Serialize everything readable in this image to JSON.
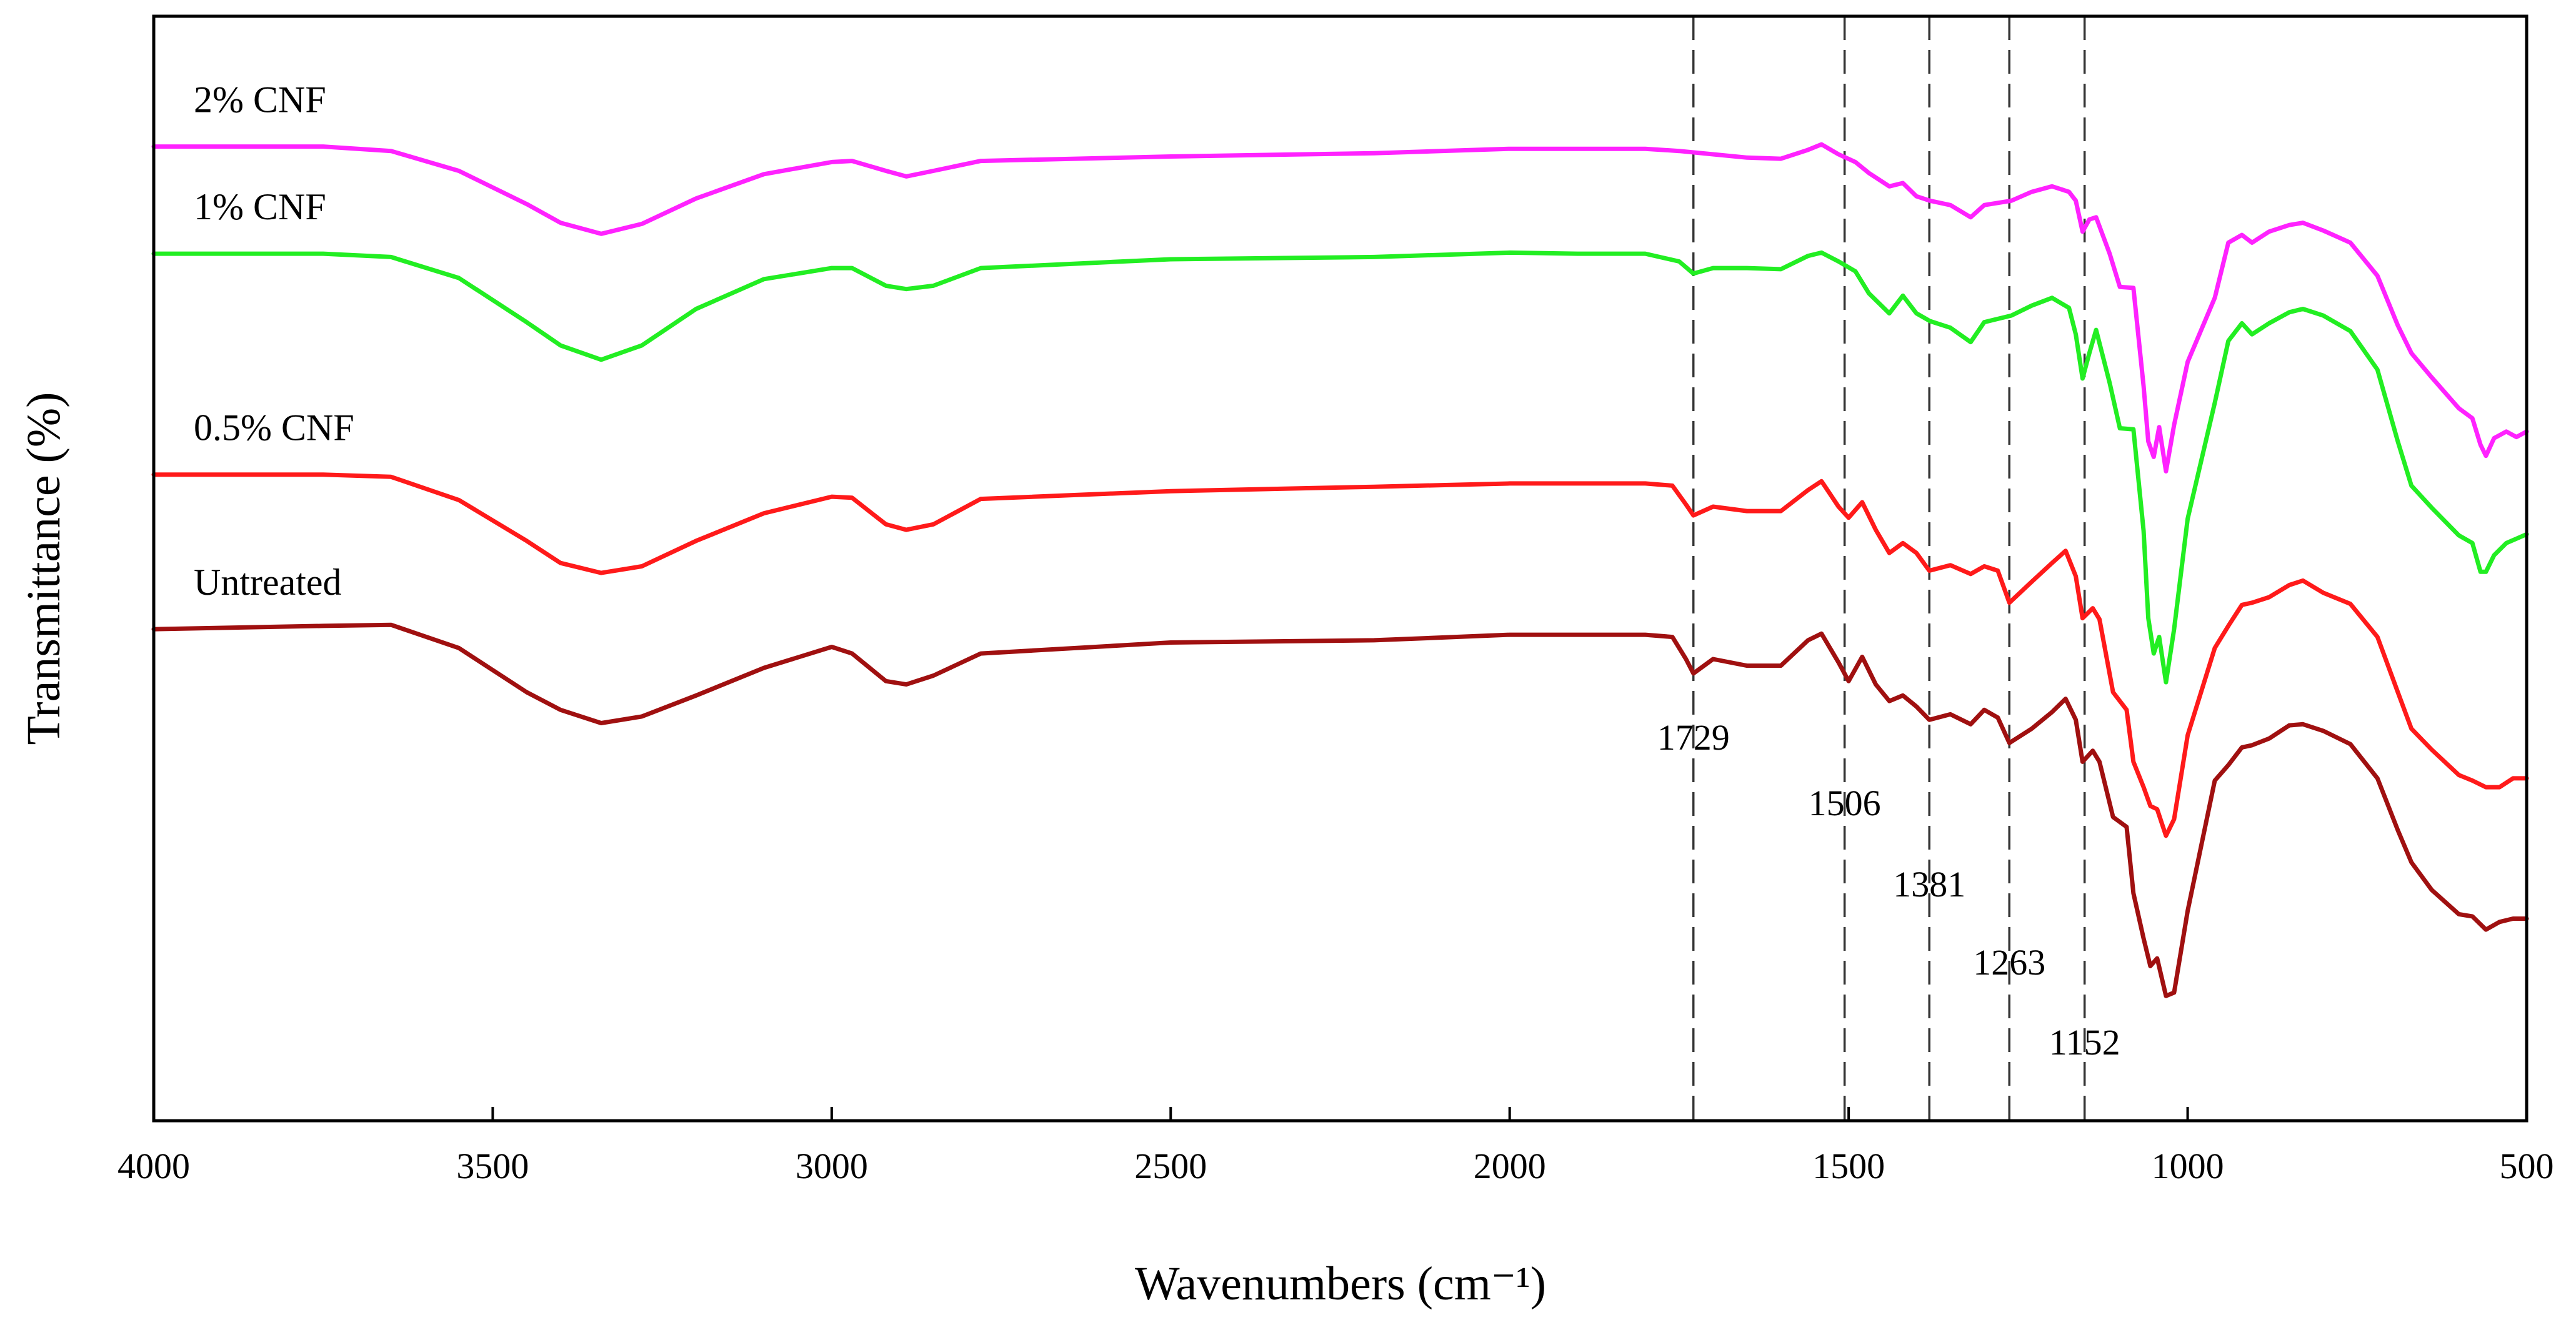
{
  "chart_data": {
    "type": "line",
    "title": "",
    "xlabel": "Wavenumbers (cm⁻¹)",
    "ylabel": "Transmittance (%)",
    "xlim": [
      4000,
      500
    ],
    "x_reversed": true,
    "ylim": [
      0,
      100
    ],
    "y_ticks_shown": false,
    "grid": false,
    "x_ticks": [
      "4000",
      "3500",
      "3000",
      "2500",
      "2000",
      "1500",
      "1000",
      "500"
    ],
    "reference_lines": [
      {
        "x": 1729,
        "label": "1729",
        "style": "dashed"
      },
      {
        "x": 1506,
        "label": "1506",
        "style": "dashed"
      },
      {
        "x": 1381,
        "label": "1381",
        "style": "dashed"
      },
      {
        "x": 1263,
        "label": "1263",
        "style": "dashed"
      },
      {
        "x": 1152,
        "label": "1152",
        "style": "dashed"
      }
    ],
    "series": [
      {
        "name": "2% CNF",
        "color": "#ff22ff",
        "points": [
          [
            4000,
            88.2
          ],
          [
            3750,
            88.2
          ],
          [
            3650,
            87.8
          ],
          [
            3550,
            86
          ],
          [
            3450,
            83
          ],
          [
            3400,
            81.3
          ],
          [
            3340,
            80.3
          ],
          [
            3280,
            81.2
          ],
          [
            3200,
            83.5
          ],
          [
            3100,
            85.7
          ],
          [
            3000,
            86.8
          ],
          [
            2970,
            86.9
          ],
          [
            2920,
            86
          ],
          [
            2890,
            85.5
          ],
          [
            2850,
            86
          ],
          [
            2780,
            86.9
          ],
          [
            2500,
            87.3
          ],
          [
            2200,
            87.6
          ],
          [
            2000,
            88
          ],
          [
            1900,
            88
          ],
          [
            1800,
            88
          ],
          [
            1750,
            87.8
          ],
          [
            1700,
            87.5
          ],
          [
            1650,
            87.2
          ],
          [
            1600,
            87.1
          ],
          [
            1560,
            87.9
          ],
          [
            1540,
            88.4
          ],
          [
            1515,
            87.5
          ],
          [
            1490,
            86.8
          ],
          [
            1470,
            85.8
          ],
          [
            1440,
            84.6
          ],
          [
            1420,
            84.9
          ],
          [
            1400,
            83.7
          ],
          [
            1380,
            83.3
          ],
          [
            1350,
            82.9
          ],
          [
            1320,
            81.8
          ],
          [
            1300,
            82.9
          ],
          [
            1260,
            83.3
          ],
          [
            1230,
            84.1
          ],
          [
            1200,
            84.6
          ],
          [
            1175,
            84.1
          ],
          [
            1165,
            83.3
          ],
          [
            1155,
            80.5
          ],
          [
            1145,
            81.6
          ],
          [
            1135,
            81.8
          ],
          [
            1115,
            78.5
          ],
          [
            1100,
            75.5
          ],
          [
            1080,
            75.4
          ],
          [
            1065,
            66.5
          ],
          [
            1058,
            61.5
          ],
          [
            1050,
            60.1
          ],
          [
            1042,
            62.8
          ],
          [
            1032,
            58.8
          ],
          [
            1020,
            63
          ],
          [
            1000,
            68.7
          ],
          [
            960,
            74.5
          ],
          [
            940,
            79.5
          ],
          [
            920,
            80.2
          ],
          [
            905,
            79.5
          ],
          [
            880,
            80.5
          ],
          [
            850,
            81.1
          ],
          [
            830,
            81.3
          ],
          [
            800,
            80.6
          ],
          [
            760,
            79.5
          ],
          [
            720,
            76.5
          ],
          [
            690,
            72
          ],
          [
            670,
            69.5
          ],
          [
            640,
            67.3
          ],
          [
            600,
            64.5
          ],
          [
            580,
            63.6
          ],
          [
            568,
            61.2
          ],
          [
            560,
            60.2
          ],
          [
            548,
            61.8
          ],
          [
            530,
            62.4
          ],
          [
            515,
            61.9
          ],
          [
            500,
            62.4
          ]
        ]
      },
      {
        "name": "1% CNF",
        "color": "#22ee22",
        "points": [
          [
            4000,
            78.5
          ],
          [
            3750,
            78.5
          ],
          [
            3650,
            78.2
          ],
          [
            3550,
            76.3
          ],
          [
            3450,
            72.3
          ],
          [
            3400,
            70.2
          ],
          [
            3340,
            68.9
          ],
          [
            3280,
            70.2
          ],
          [
            3200,
            73.5
          ],
          [
            3100,
            76.2
          ],
          [
            3000,
            77.2
          ],
          [
            2970,
            77.2
          ],
          [
            2920,
            75.6
          ],
          [
            2890,
            75.3
          ],
          [
            2850,
            75.6
          ],
          [
            2780,
            77.2
          ],
          [
            2500,
            78
          ],
          [
            2200,
            78.2
          ],
          [
            2000,
            78.6
          ],
          [
            1900,
            78.5
          ],
          [
            1800,
            78.5
          ],
          [
            1750,
            77.8
          ],
          [
            1729,
            76.7
          ],
          [
            1700,
            77.2
          ],
          [
            1650,
            77.2
          ],
          [
            1600,
            77.1
          ],
          [
            1560,
            78.3
          ],
          [
            1540,
            78.6
          ],
          [
            1515,
            77.8
          ],
          [
            1490,
            76.9
          ],
          [
            1470,
            74.9
          ],
          [
            1440,
            73.1
          ],
          [
            1420,
            74.7
          ],
          [
            1400,
            73.1
          ],
          [
            1380,
            72.4
          ],
          [
            1350,
            71.8
          ],
          [
            1320,
            70.5
          ],
          [
            1300,
            72.3
          ],
          [
            1260,
            72.9
          ],
          [
            1230,
            73.8
          ],
          [
            1200,
            74.5
          ],
          [
            1175,
            73.6
          ],
          [
            1165,
            71.2
          ],
          [
            1155,
            67.2
          ],
          [
            1145,
            69.5
          ],
          [
            1135,
            71.6
          ],
          [
            1115,
            66.8
          ],
          [
            1100,
            62.7
          ],
          [
            1080,
            62.6
          ],
          [
            1065,
            53.4
          ],
          [
            1058,
            45.5
          ],
          [
            1050,
            42.3
          ],
          [
            1042,
            43.8
          ],
          [
            1032,
            39.7
          ],
          [
            1020,
            44.5
          ],
          [
            1000,
            54.5
          ],
          [
            960,
            65
          ],
          [
            940,
            70.6
          ],
          [
            920,
            72.2
          ],
          [
            905,
            71.2
          ],
          [
            880,
            72.2
          ],
          [
            850,
            73.2
          ],
          [
            830,
            73.5
          ],
          [
            800,
            72.9
          ],
          [
            760,
            71.5
          ],
          [
            720,
            68
          ],
          [
            690,
            61.5
          ],
          [
            670,
            57.5
          ],
          [
            640,
            55.5
          ],
          [
            600,
            53
          ],
          [
            580,
            52.3
          ],
          [
            568,
            49.7
          ],
          [
            560,
            49.7
          ],
          [
            548,
            51.2
          ],
          [
            530,
            52.3
          ],
          [
            515,
            52.7
          ],
          [
            500,
            53.1
          ]
        ]
      },
      {
        "name": "0.5% CNF",
        "color": "#ff1a1a",
        "points": [
          [
            4000,
            58.5
          ],
          [
            3750,
            58.5
          ],
          [
            3650,
            58.3
          ],
          [
            3550,
            56.2
          ],
          [
            3450,
            52.5
          ],
          [
            3400,
            50.5
          ],
          [
            3340,
            49.6
          ],
          [
            3280,
            50.2
          ],
          [
            3200,
            52.5
          ],
          [
            3100,
            55
          ],
          [
            3000,
            56.5
          ],
          [
            2970,
            56.4
          ],
          [
            2920,
            54
          ],
          [
            2890,
            53.5
          ],
          [
            2850,
            54
          ],
          [
            2780,
            56.3
          ],
          [
            2500,
            57
          ],
          [
            2200,
            57.4
          ],
          [
            2000,
            57.7
          ],
          [
            1900,
            57.7
          ],
          [
            1800,
            57.7
          ],
          [
            1760,
            57.5
          ],
          [
            1740,
            55.8
          ],
          [
            1729,
            54.8
          ],
          [
            1700,
            55.6
          ],
          [
            1650,
            55.2
          ],
          [
            1600,
            55.2
          ],
          [
            1560,
            57.1
          ],
          [
            1540,
            57.9
          ],
          [
            1515,
            55.6
          ],
          [
            1500,
            54.6
          ],
          [
            1480,
            56
          ],
          [
            1460,
            53.5
          ],
          [
            1440,
            51.4
          ],
          [
            1420,
            52.3
          ],
          [
            1400,
            51.4
          ],
          [
            1381,
            49.8
          ],
          [
            1350,
            50.3
          ],
          [
            1320,
            49.5
          ],
          [
            1300,
            50.2
          ],
          [
            1280,
            49.8
          ],
          [
            1263,
            46.9
          ],
          [
            1230,
            48.8
          ],
          [
            1200,
            50.5
          ],
          [
            1180,
            51.6
          ],
          [
            1165,
            49.3
          ],
          [
            1155,
            45.5
          ],
          [
            1140,
            46.4
          ],
          [
            1130,
            45.4
          ],
          [
            1110,
            38.8
          ],
          [
            1090,
            37.2
          ],
          [
            1080,
            32.5
          ],
          [
            1065,
            30.2
          ],
          [
            1055,
            28.5
          ],
          [
            1045,
            28.2
          ],
          [
            1032,
            25.8
          ],
          [
            1020,
            27.3
          ],
          [
            1000,
            34.9
          ],
          [
            960,
            42.8
          ],
          [
            940,
            44.8
          ],
          [
            920,
            46.7
          ],
          [
            905,
            46.9
          ],
          [
            880,
            47.4
          ],
          [
            850,
            48.5
          ],
          [
            830,
            48.9
          ],
          [
            800,
            47.8
          ],
          [
            760,
            46.8
          ],
          [
            720,
            43.8
          ],
          [
            690,
            38.8
          ],
          [
            670,
            35.5
          ],
          [
            640,
            33.6
          ],
          [
            600,
            31.3
          ],
          [
            580,
            30.8
          ],
          [
            560,
            30.2
          ],
          [
            540,
            30.2
          ],
          [
            520,
            31
          ],
          [
            500,
            31
          ]
        ]
      },
      {
        "name": "Untreated",
        "color": "#a01010",
        "points": [
          [
            4000,
            44.5
          ],
          [
            3750,
            44.8
          ],
          [
            3650,
            44.9
          ],
          [
            3550,
            42.8
          ],
          [
            3450,
            38.8
          ],
          [
            3400,
            37.2
          ],
          [
            3340,
            36
          ],
          [
            3280,
            36.6
          ],
          [
            3200,
            38.5
          ],
          [
            3100,
            41
          ],
          [
            3000,
            42.9
          ],
          [
            2970,
            42.3
          ],
          [
            2920,
            39.8
          ],
          [
            2890,
            39.5
          ],
          [
            2850,
            40.3
          ],
          [
            2780,
            42.3
          ],
          [
            2500,
            43.3
          ],
          [
            2200,
            43.5
          ],
          [
            2000,
            44
          ],
          [
            1900,
            44
          ],
          [
            1800,
            44
          ],
          [
            1760,
            43.8
          ],
          [
            1740,
            41.8
          ],
          [
            1729,
            40.5
          ],
          [
            1700,
            41.8
          ],
          [
            1650,
            41.2
          ],
          [
            1600,
            41.2
          ],
          [
            1560,
            43.5
          ],
          [
            1540,
            44.1
          ],
          [
            1515,
            41.5
          ],
          [
            1500,
            39.8
          ],
          [
            1480,
            42
          ],
          [
            1460,
            39.5
          ],
          [
            1440,
            38
          ],
          [
            1420,
            38.5
          ],
          [
            1400,
            37.5
          ],
          [
            1381,
            36.3
          ],
          [
            1350,
            36.8
          ],
          [
            1320,
            35.9
          ],
          [
            1300,
            37.2
          ],
          [
            1280,
            36.5
          ],
          [
            1263,
            34.2
          ],
          [
            1230,
            35.5
          ],
          [
            1200,
            37
          ],
          [
            1180,
            38.2
          ],
          [
            1165,
            36.3
          ],
          [
            1155,
            32.5
          ],
          [
            1140,
            33.5
          ],
          [
            1130,
            32.5
          ],
          [
            1110,
            27.5
          ],
          [
            1090,
            26.6
          ],
          [
            1080,
            20.6
          ],
          [
            1065,
            16.5
          ],
          [
            1055,
            14
          ],
          [
            1045,
            14.7
          ],
          [
            1032,
            11.3
          ],
          [
            1020,
            11.6
          ],
          [
            1000,
            19
          ],
          [
            960,
            30.8
          ],
          [
            940,
            32.2
          ],
          [
            920,
            33.8
          ],
          [
            905,
            34
          ],
          [
            880,
            34.6
          ],
          [
            850,
            35.8
          ],
          [
            830,
            35.9
          ],
          [
            800,
            35.3
          ],
          [
            760,
            34.1
          ],
          [
            720,
            31
          ],
          [
            690,
            26.3
          ],
          [
            670,
            23.4
          ],
          [
            640,
            20.9
          ],
          [
            600,
            18.7
          ],
          [
            580,
            18.5
          ],
          [
            560,
            17.3
          ],
          [
            540,
            18
          ],
          [
            520,
            18.3
          ],
          [
            500,
            18.3
          ]
        ]
      }
    ]
  }
}
